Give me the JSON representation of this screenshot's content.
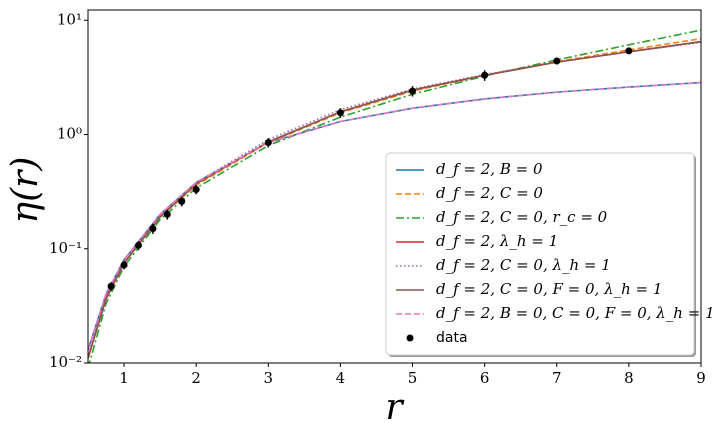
{
  "chart_data": {
    "type": "line",
    "x_label": "r",
    "y_label": "η(r)",
    "xlim": [
      0.5,
      9
    ],
    "ylim": [
      0.01,
      12.3
    ],
    "y_scale": "log",
    "xticks": [
      1,
      2,
      3,
      4,
      5,
      6,
      7,
      8,
      9
    ],
    "yticks": [
      {
        "value": 0.01,
        "label": "10⁻²"
      },
      {
        "value": 0.1,
        "label": "10⁻¹"
      },
      {
        "value": 1,
        "label": "10⁰"
      },
      {
        "value": 10,
        "label": "10¹"
      }
    ],
    "legend": "lower right",
    "x": [
      0.5,
      0.75,
      1,
      1.5,
      2,
      3,
      4,
      5,
      6,
      7,
      8,
      9
    ],
    "series": [
      {
        "name": "d_f = 2, B = 0",
        "color": "#1f77b4",
        "linestyle": "solid",
        "values": [
          0.013,
          0.04,
          0.08,
          0.2,
          0.38,
          0.85,
          1.3,
          1.7,
          2.05,
          2.35,
          2.6,
          2.85
        ]
      },
      {
        "name": "d_f = 2, C = 0",
        "color": "#ff7f0e",
        "linestyle": "dashed",
        "values": [
          0.011,
          0.037,
          0.075,
          0.19,
          0.36,
          0.85,
          1.55,
          2.4,
          3.3,
          4.35,
          5.5,
          6.9
        ]
      },
      {
        "name": "d_f = 2, C = 0, r_c = 0",
        "color": "#2ca02c",
        "linestyle": "dashdot",
        "values": [
          0.009,
          0.033,
          0.07,
          0.18,
          0.34,
          0.8,
          1.42,
          2.25,
          3.25,
          4.5,
          6.1,
          8.2
        ]
      },
      {
        "name": "d_f = 2, λ_h = 1",
        "color": "#d62728",
        "linestyle": "solid",
        "values": [
          0.011,
          0.037,
          0.075,
          0.19,
          0.37,
          0.86,
          1.58,
          2.45,
          3.3,
          4.3,
          5.3,
          6.5
        ]
      },
      {
        "name": "d_f = 2, C = 0, λ_h = 1",
        "color": "#9467bd",
        "linestyle": "dotted",
        "values": [
          0.012,
          0.04,
          0.08,
          0.2,
          0.38,
          0.9,
          1.65,
          2.5,
          3.35,
          4.3,
          5.3,
          6.4
        ]
      },
      {
        "name": "d_f = 2, C = 0, F = 0, λ_h = 1",
        "color": "#8c564b",
        "linestyle": "solid",
        "values": [
          0.011,
          0.036,
          0.075,
          0.19,
          0.37,
          0.86,
          1.58,
          2.45,
          3.3,
          4.3,
          5.3,
          6.5
        ]
      },
      {
        "name": "d_f = 2, B = 0, C = 0, F = 0, λ_h = 1",
        "color": "#e377c2",
        "linestyle": "dashed",
        "values": [
          0.013,
          0.04,
          0.08,
          0.2,
          0.38,
          0.85,
          1.3,
          1.7,
          2.05,
          2.35,
          2.6,
          2.85
        ]
      }
    ],
    "points": {
      "name": "data",
      "color": "#000000",
      "x": [
        0.82,
        1,
        1.2,
        1.4,
        1.6,
        1.8,
        2,
        3,
        4,
        5,
        6,
        7,
        8
      ],
      "values": [
        0.047,
        0.072,
        0.107,
        0.15,
        0.2,
        0.26,
        0.33,
        0.85,
        1.55,
        2.4,
        3.3,
        4.4,
        5.4
      ],
      "errors": [
        0.004,
        0.006,
        0.01,
        0.015,
        0.02,
        0.025,
        0.03,
        0.08,
        0.15,
        0.25,
        0.35,
        0.3,
        0.3
      ]
    }
  }
}
